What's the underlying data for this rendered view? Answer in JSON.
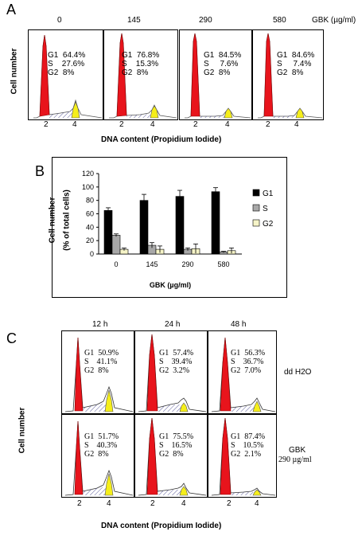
{
  "panelA": {
    "letter": "A",
    "unit": "GBK (µg/ml)",
    "y_label": "Cell number",
    "x_label": "DNA content (Propidium Iodide)",
    "tick2": "2",
    "tick4": "4",
    "conditions": [
      {
        "dose": "0",
        "g1": "G1  64.4%",
        "s": "S    27.6%",
        "g2": "G2  8%"
      },
      {
        "dose": "145",
        "g1": "G1  76.8%",
        "s": "S    15.3%",
        "g2": "G2  8%"
      },
      {
        "dose": "290",
        "g1": "G1  84.5%",
        "s": "S     7.6%",
        "g2": "G2  8%"
      },
      {
        "dose": "580",
        "g1": "G1  84.6%",
        "s": "S     7.4%",
        "g2": "G2  8%"
      }
    ]
  },
  "panelB": {
    "letter": "B",
    "chart_data": {
      "type": "bar",
      "categories": [
        "0",
        "145",
        "290",
        "580"
      ],
      "series": [
        {
          "name": "G1",
          "values": [
            65,
            80,
            86,
            93
          ],
          "errors": [
            4,
            9,
            9,
            6
          ],
          "color": "#000000"
        },
        {
          "name": "S",
          "values": [
            28,
            13,
            7,
            3
          ],
          "errors": [
            2,
            4,
            2,
            1
          ],
          "color": "#a8a8a8"
        },
        {
          "name": "G2",
          "values": [
            7,
            7,
            8,
            5
          ],
          "errors": [
            2,
            5,
            7,
            4
          ],
          "color": "#f6f4c8"
        }
      ],
      "ylim": [
        0,
        120
      ],
      "yticks": [
        "0",
        "20",
        "40",
        "60",
        "80",
        "100",
        "120"
      ],
      "ylabel": "Cell number\n(% of total cells)",
      "ylabel_line1": "Cell number",
      "ylabel_line2": "(% of total cells)",
      "xlabel": "GBK (µg/ml)",
      "legend_position": "right"
    }
  },
  "panelC": {
    "letter": "C",
    "times": [
      "12 h",
      "24 h",
      "48 h"
    ],
    "y_label": "Cell number",
    "x_label": "DNA content (Propidium Iodide)",
    "tick2": "2",
    "tick4": "4",
    "row1_label": "dd H2O",
    "row2_label1": "GBK",
    "row2_label2": "290 µg/ml",
    "row1": [
      {
        "g1": "G1  50.9%",
        "s": "S    41.1%",
        "g2": "G2  8%"
      },
      {
        "g1": "G1  57.4%",
        "s": "S    39.4%",
        "g2": "G2  3.2%"
      },
      {
        "g1": "G1  56.3%",
        "s": "S    36.7%",
        "g2": "G2  7.0%"
      }
    ],
    "row2": [
      {
        "g1": "G1  51.7%",
        "s": "S    40.3%",
        "g2": "G2  8%"
      },
      {
        "g1": "G1  75.5%",
        "s": "S    16.5%",
        "g2": "G2  8%"
      },
      {
        "g1": "G1  87.4%",
        "s": "S    10.5%",
        "g2": "G2  2.1%"
      }
    ]
  },
  "colors": {
    "g1_fill": "#e8141c",
    "g2_fill": "#f5ee1a",
    "s_hatch": "#5a5a9a"
  }
}
